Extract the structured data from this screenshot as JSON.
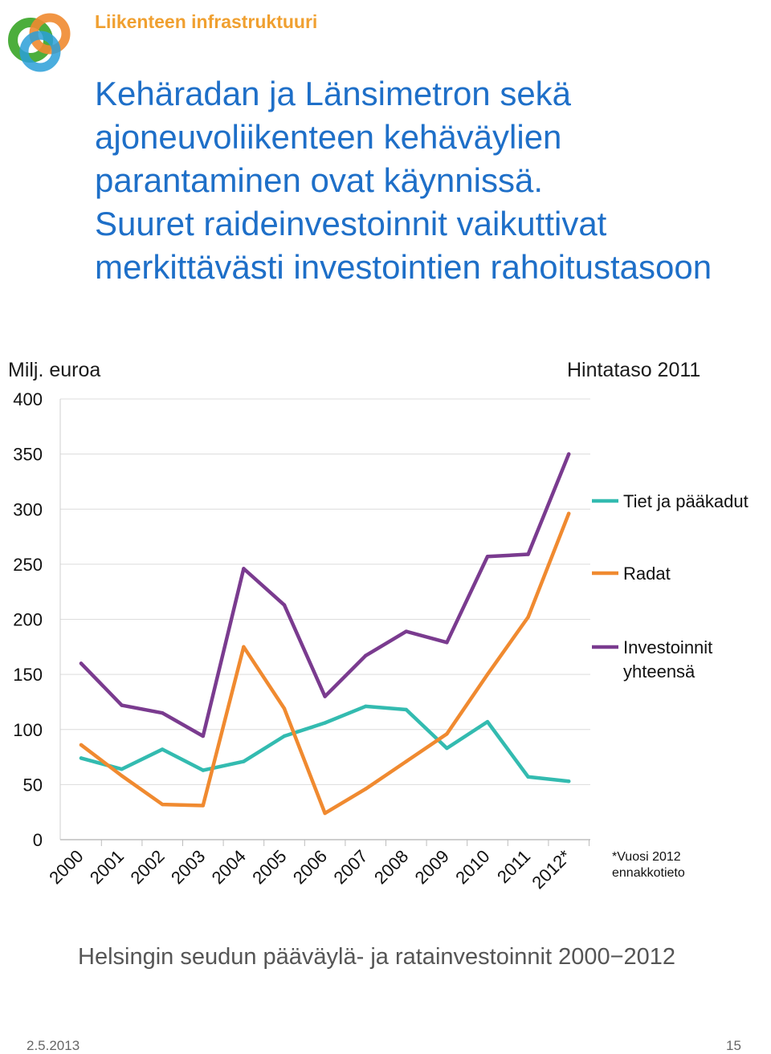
{
  "header": {
    "section_label": "Liikenteen infrastruktuuri"
  },
  "headline": [
    "Kehäradan ja Länsimetron sekä",
    "ajoneuvoliikenteen kehäväylien",
    "parantaminen ovat käynnissä.",
    "Suuret raideinvestoinnit vaikuttivat",
    "merkittävästi investointien rahoitustasoon"
  ],
  "chart_data": {
    "type": "line",
    "ylabel": "Milj. euroa",
    "price_level": "Hintataso  2011",
    "categories": [
      "2000",
      "2001",
      "2002",
      "2003",
      "2004",
      "2005",
      "2006",
      "2007",
      "2008",
      "2009",
      "2010",
      "2011",
      "2012*"
    ],
    "y_ticks": [
      0,
      50,
      100,
      150,
      200,
      250,
      300,
      350,
      400
    ],
    "ylim": [
      0,
      400
    ],
    "grid": true,
    "legend_position": "right",
    "series": [
      {
        "name": "Tiet ja pääkadut",
        "color": "#33bbb0",
        "values": [
          74,
          64,
          82,
          63,
          71,
          94,
          106,
          121,
          118,
          83,
          107,
          57,
          53
        ]
      },
      {
        "name": "Radat",
        "color": "#f08a30",
        "values": [
          86,
          58,
          32,
          31,
          175,
          119,
          24,
          46,
          71,
          96,
          150,
          202,
          296
        ]
      },
      {
        "name": "Investoinnit yhteensä",
        "color": "#7a3b8f",
        "values": [
          160,
          122,
          115,
          94,
          246,
          213,
          130,
          167,
          189,
          179,
          257,
          259,
          350
        ]
      }
    ],
    "footnote": [
      "*Vuosi 2012",
      "ennakkotieto"
    ]
  },
  "caption": "Helsingin seudun pääväylä- ja ratainvestoinnit 2000−2012",
  "footer": {
    "date": "2.5.2013",
    "page": "15"
  }
}
